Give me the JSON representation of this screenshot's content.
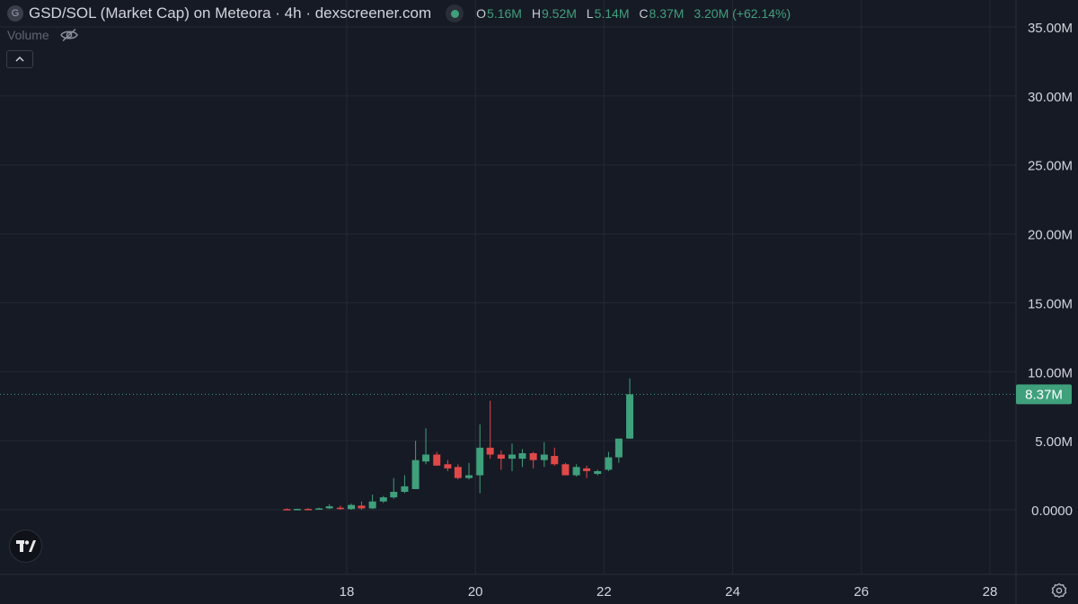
{
  "header": {
    "symbol_initial": "G",
    "title": "GSD/SOL (Market Cap) on Meteora · 4h · dexscreener.com",
    "ohlc": {
      "o_label": "O",
      "o_value": "5.16M",
      "h_label": "H",
      "h_value": "9.52M",
      "l_label": "L",
      "l_value": "5.14M",
      "c_label": "C",
      "c_value": "8.37M",
      "change": "3.20M (+62.14%)"
    }
  },
  "volume": {
    "label": "Volume"
  },
  "colors": {
    "background": "#161a25",
    "grid": "#242833",
    "up": "#3fa07c",
    "down": "#e04848",
    "text": "#d1d4dc"
  },
  "chart_data": {
    "type": "candlestick",
    "ylim": [
      -3,
      35
    ],
    "y_ticks": [
      {
        "value": 35,
        "label": "35.00M"
      },
      {
        "value": 30,
        "label": "30.00M"
      },
      {
        "value": 25,
        "label": "25.00M"
      },
      {
        "value": 20,
        "label": "20.00M"
      },
      {
        "value": 15,
        "label": "15.00M"
      },
      {
        "value": 10,
        "label": "10.00M"
      },
      {
        "value": 5,
        "label": "5.00M"
      },
      {
        "value": 0,
        "label": "0.0000"
      }
    ],
    "xlim": [
      17.3,
      28.1
    ],
    "x_ticks": [
      {
        "value": 18,
        "label": "18"
      },
      {
        "value": 20,
        "label": "20"
      },
      {
        "value": 22,
        "label": "22"
      },
      {
        "value": 24,
        "label": "24"
      },
      {
        "value": 26,
        "label": "26"
      },
      {
        "value": 28,
        "label": "28"
      }
    ],
    "last_price": {
      "value": 8.37,
      "label": "8.37M"
    },
    "candles": [
      {
        "t": 17.07,
        "o": 0.05,
        "h": 0.1,
        "l": 0.0,
        "c": 0.03
      },
      {
        "t": 17.23,
        "o": 0.03,
        "h": 0.08,
        "l": 0.0,
        "c": 0.06
      },
      {
        "t": 17.4,
        "o": 0.06,
        "h": 0.12,
        "l": 0.02,
        "c": 0.04
      },
      {
        "t": 17.57,
        "o": 0.04,
        "h": 0.15,
        "l": 0.02,
        "c": 0.1
      },
      {
        "t": 17.73,
        "o": 0.1,
        "h": 0.4,
        "l": 0.05,
        "c": 0.25
      },
      {
        "t": 17.9,
        "o": 0.15,
        "h": 0.3,
        "l": 0.0,
        "c": 0.05
      },
      {
        "t": 18.07,
        "o": 0.05,
        "h": 0.45,
        "l": 0.0,
        "c": 0.35
      },
      {
        "t": 18.23,
        "o": 0.3,
        "h": 0.6,
        "l": 0.0,
        "c": 0.1
      },
      {
        "t": 18.4,
        "o": 0.1,
        "h": 1.1,
        "l": 0.05,
        "c": 0.6
      },
      {
        "t": 18.57,
        "o": 0.6,
        "h": 1.0,
        "l": 0.5,
        "c": 0.9
      },
      {
        "t": 18.73,
        "o": 0.9,
        "h": 2.3,
        "l": 0.8,
        "c": 1.3
      },
      {
        "t": 18.9,
        "o": 1.3,
        "h": 2.5,
        "l": 1.2,
        "c": 1.7
      },
      {
        "t": 19.07,
        "o": 1.5,
        "h": 5.0,
        "l": 1.5,
        "c": 3.6
      },
      {
        "t": 19.23,
        "o": 3.5,
        "h": 5.9,
        "l": 3.3,
        "c": 4.0
      },
      {
        "t": 19.4,
        "o": 4.0,
        "h": 4.2,
        "l": 3.2,
        "c": 3.2
      },
      {
        "t": 19.57,
        "o": 3.3,
        "h": 3.6,
        "l": 2.8,
        "c": 3.0
      },
      {
        "t": 19.73,
        "o": 3.1,
        "h": 3.3,
        "l": 2.2,
        "c": 2.3
      },
      {
        "t": 19.9,
        "o": 2.3,
        "h": 3.4,
        "l": 2.2,
        "c": 2.5
      },
      {
        "t": 20.07,
        "o": 2.5,
        "h": 6.2,
        "l": 1.2,
        "c": 4.5
      },
      {
        "t": 20.23,
        "o": 4.5,
        "h": 7.9,
        "l": 3.7,
        "c": 4.0
      },
      {
        "t": 20.4,
        "o": 4.0,
        "h": 4.3,
        "l": 2.9,
        "c": 3.7
      },
      {
        "t": 20.57,
        "o": 3.7,
        "h": 4.8,
        "l": 2.8,
        "c": 4.0
      },
      {
        "t": 20.73,
        "o": 3.7,
        "h": 4.4,
        "l": 3.1,
        "c": 4.1
      },
      {
        "t": 20.9,
        "o": 4.1,
        "h": 4.2,
        "l": 3.0,
        "c": 3.6
      },
      {
        "t": 21.07,
        "o": 3.6,
        "h": 4.9,
        "l": 3.1,
        "c": 4.0
      },
      {
        "t": 21.23,
        "o": 3.9,
        "h": 4.5,
        "l": 3.2,
        "c": 3.3
      },
      {
        "t": 21.4,
        "o": 3.3,
        "h": 3.4,
        "l": 2.5,
        "c": 2.5
      },
      {
        "t": 21.57,
        "o": 2.5,
        "h": 3.3,
        "l": 2.4,
        "c": 3.1
      },
      {
        "t": 21.73,
        "o": 3.0,
        "h": 3.2,
        "l": 2.3,
        "c": 2.8
      },
      {
        "t": 21.9,
        "o": 2.6,
        "h": 2.9,
        "l": 2.5,
        "c": 2.8
      },
      {
        "t": 22.07,
        "o": 2.9,
        "h": 4.2,
        "l": 2.8,
        "c": 3.8
      },
      {
        "t": 22.23,
        "o": 3.8,
        "h": 4.9,
        "l": 3.4,
        "c": 5.16
      },
      {
        "t": 22.4,
        "o": 5.16,
        "h": 9.52,
        "l": 5.14,
        "c": 8.37
      }
    ]
  }
}
